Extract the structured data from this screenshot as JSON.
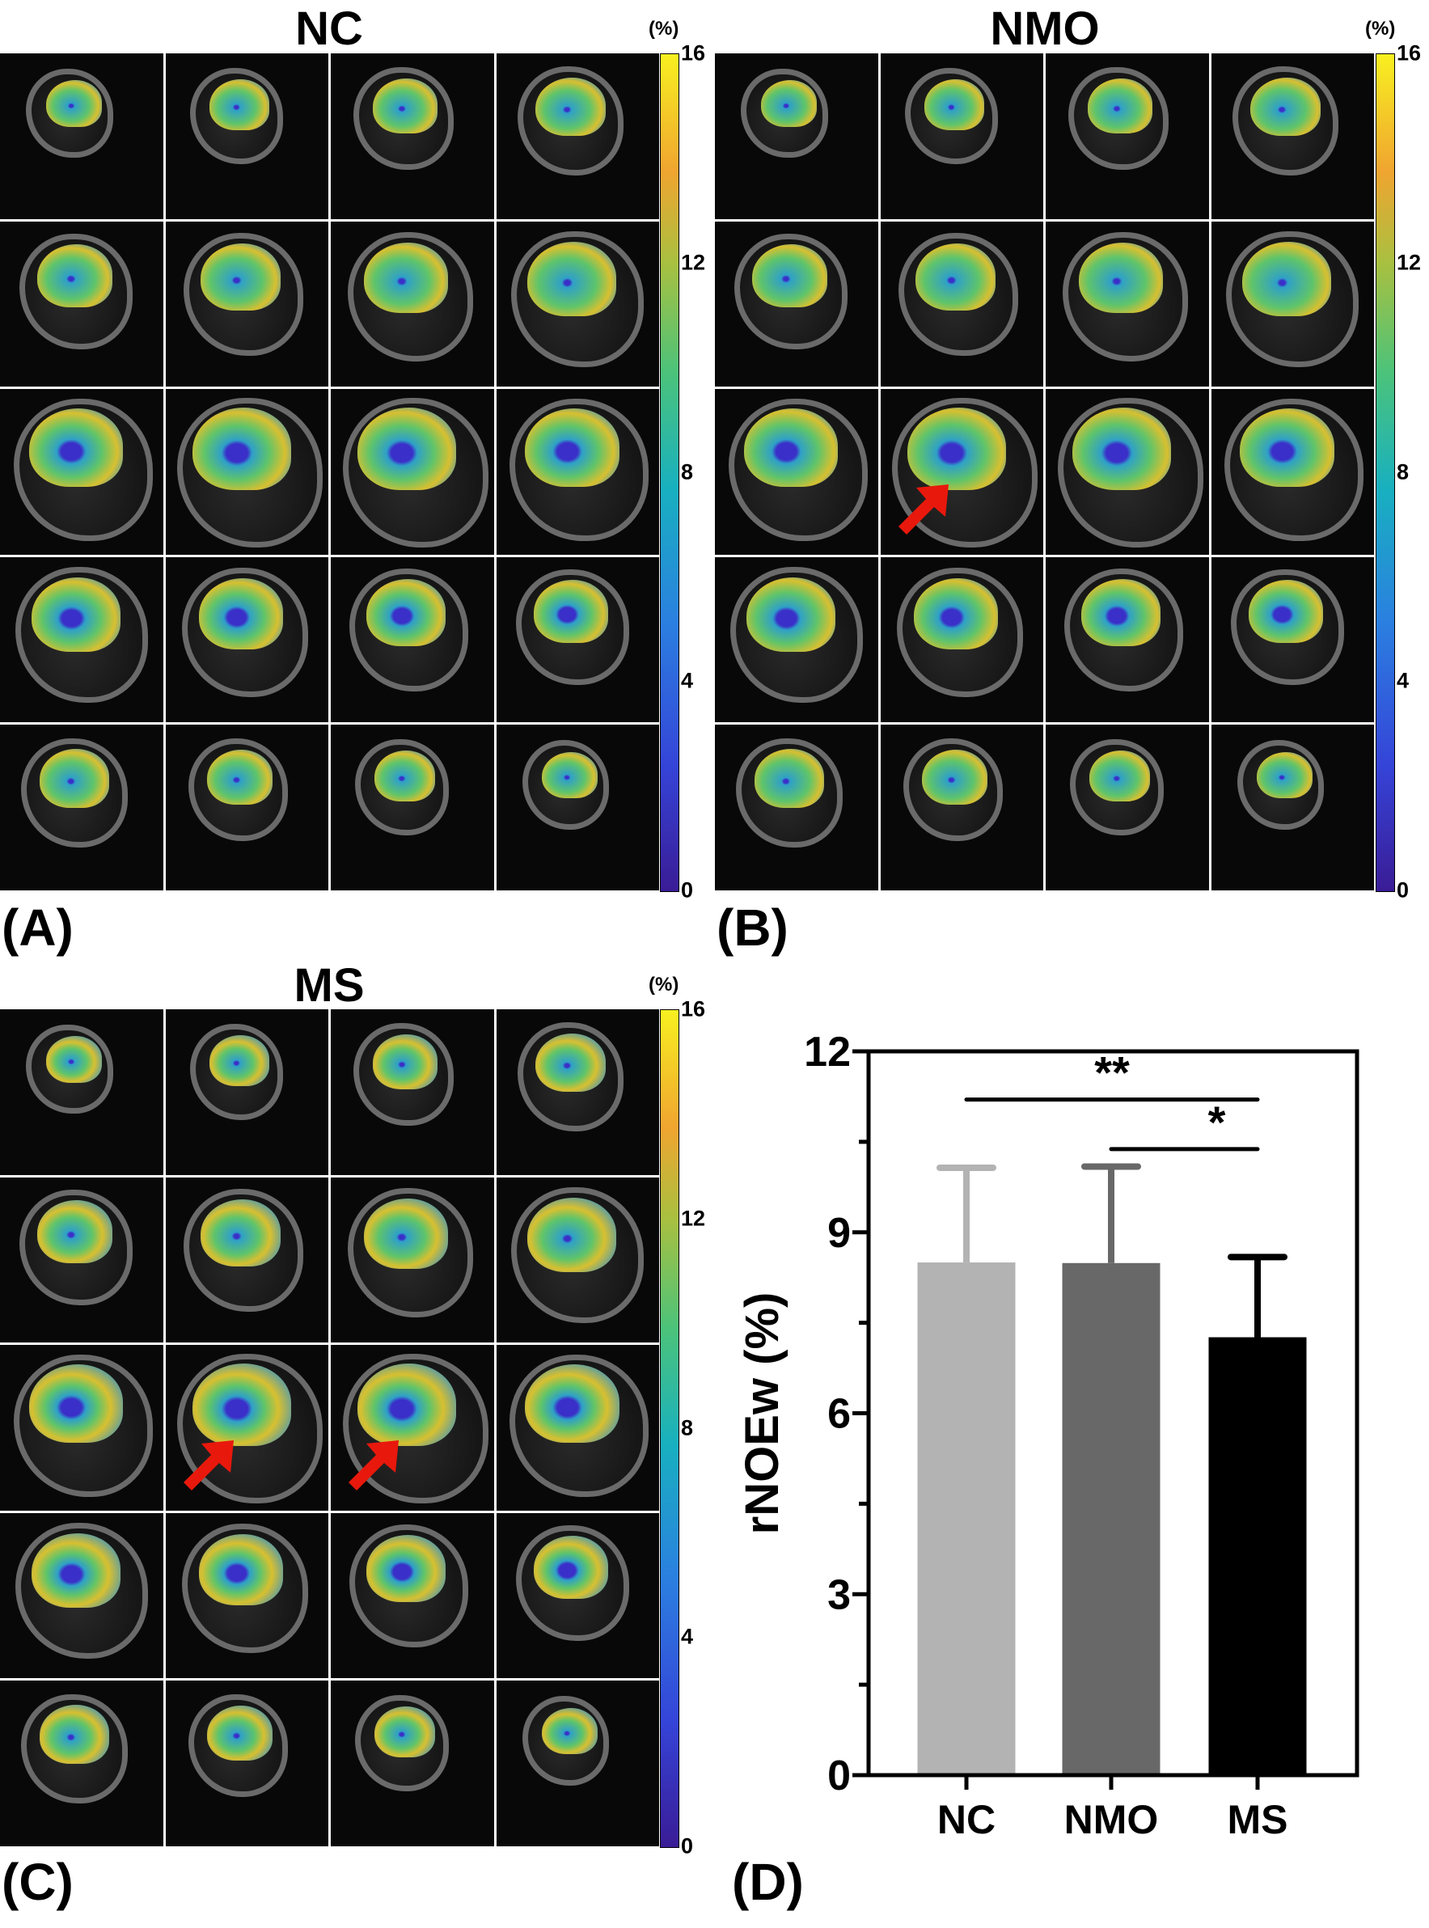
{
  "panels": [
    {
      "id": "A",
      "title": "NC",
      "label": "(A)",
      "arrows": []
    },
    {
      "id": "B",
      "title": "NMO",
      "label": "(B)",
      "arrows": [
        [
          2,
          1
        ]
      ]
    },
    {
      "id": "C",
      "title": "MS",
      "label": "(C)",
      "arrows": [
        [
          2,
          1
        ],
        [
          2,
          2
        ]
      ]
    }
  ],
  "colorbar": {
    "unit": "(%)",
    "ticks": [
      "16",
      "12",
      "8",
      "4",
      "0"
    ]
  },
  "chart_label": "(D)",
  "chart_data": {
    "type": "bar",
    "categories": [
      "NC",
      "NMO",
      "MS"
    ],
    "values": [
      8.5,
      8.49,
      7.26
    ],
    "error_upper": [
      10.07,
      10.09,
      8.59
    ],
    "colors": [
      "#b3b3b3",
      "#686868",
      "#000000"
    ],
    "ylabel": "rNOEw (%)",
    "xlabel": "",
    "ylim": [
      0,
      12
    ],
    "yticks": [
      "0",
      "3",
      "6",
      "9",
      "12"
    ],
    "minor_tick_step": 1.5,
    "significance": [
      {
        "from": "NC",
        "to": "MS",
        "y": 11.2,
        "label": "**"
      },
      {
        "from": "NMO",
        "to": "MS",
        "y": 10.38,
        "label": "*"
      }
    ]
  }
}
